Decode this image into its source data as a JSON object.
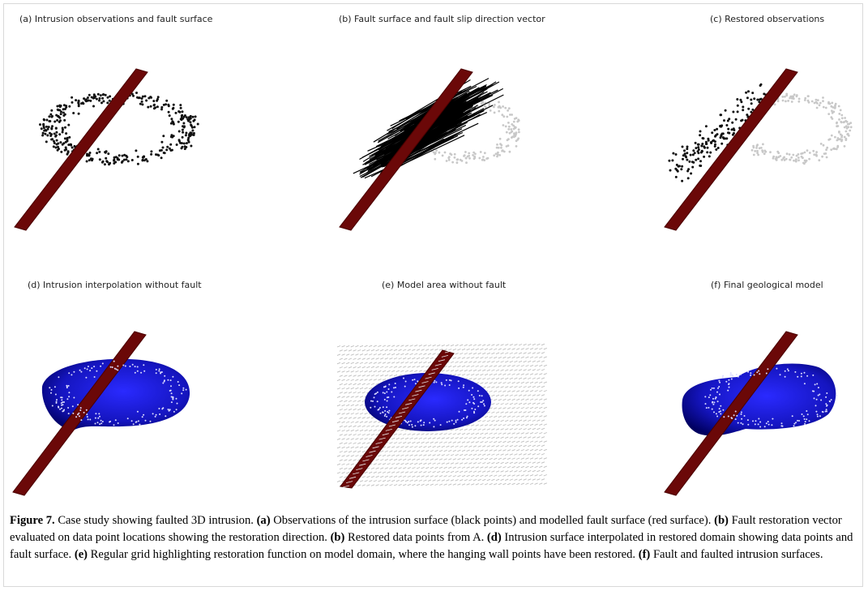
{
  "panels": [
    {
      "id": "a",
      "title": "(a) Intrusion observations and fault surface",
      "points": "black",
      "vectors": false,
      "interpolated": false,
      "grid": false
    },
    {
      "id": "b",
      "title": "(b) Fault surface and fault slip direction vector",
      "points": "grey+black",
      "vectors": true,
      "interpolated": false,
      "grid": false
    },
    {
      "id": "c",
      "title": "(c) Restored observations",
      "points": "grey+black",
      "vectors": false,
      "interpolated": false,
      "grid": false
    },
    {
      "id": "d",
      "title": "(d) Intrusion interpolation without fault",
      "points": "white",
      "vectors": false,
      "interpolated": true,
      "grid": false
    },
    {
      "id": "e",
      "title": "(e) Model area without fault",
      "points": "white",
      "vectors": false,
      "interpolated": true,
      "grid": true
    },
    {
      "id": "f",
      "title": "(f) Final geological model",
      "points": "white",
      "vectors": false,
      "interpolated": true,
      "grid": false
    }
  ],
  "colors": {
    "fault": "#6b0808",
    "fault_edge": "#4a0000",
    "intrusion": "#1010c8",
    "intrusion_dark": "#000070",
    "observation": "#111111",
    "restored_grey": "#c8c8c8",
    "grid": "#bdbdbd"
  },
  "caption": {
    "figure_label": "Figure 7.",
    "intro": " Case study showing faulted 3D intrusion. ",
    "a_label": "(a)",
    "a_text": " Observations of the intrusion surface (black points) and modelled fault surface (red surface). ",
    "b_label": "(b)",
    "b_text": " Fault restoration vector evaluated on data point locations showing the restoration direction. ",
    "b2_label": "(b)",
    "b2_text": " Restored data points from A. ",
    "d_label": "(d)",
    "d_text": " Intrusion surface interpolated in restored domain showing data points and fault surface. ",
    "e_label": "(e)",
    "e_text": " Regular grid highlighting restoration function on model domain, where the hanging wall points have been restored. ",
    "f_label": "(f)",
    "f_text": " Fault and faulted intrusion surfaces."
  }
}
